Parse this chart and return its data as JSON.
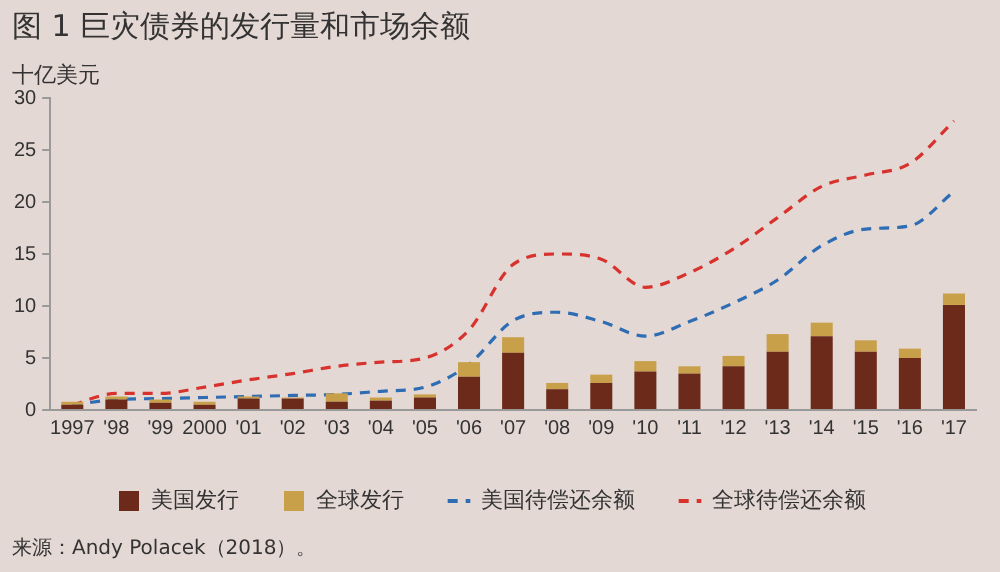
{
  "chart_data": {
    "type": "bar",
    "title": "图 1  巨灾债券的发行量和市场余额",
    "ylabel": "十亿美元",
    "categories": [
      "1997",
      "'98",
      "'99",
      "2000",
      "'01",
      "'02",
      "'03",
      "'04",
      "'05",
      "'06",
      "'07",
      "'08",
      "'09",
      "'10",
      "'11",
      "'12",
      "'13",
      "'14",
      "'15",
      "'16",
      "'17"
    ],
    "stacked": true,
    "ylim": [
      0,
      30
    ],
    "yticks": [
      0,
      5,
      10,
      15,
      20,
      25,
      30
    ],
    "grid": false,
    "legend": "bottom",
    "marker": "none",
    "series": [
      {
        "name": "美国发行",
        "color": "#6b2a1a",
        "values": [
          0.5,
          1.0,
          0.7,
          0.5,
          1.1,
          1.1,
          0.8,
          0.9,
          1.2,
          3.2,
          5.5,
          2.0,
          2.6,
          3.7,
          3.5,
          4.2,
          5.6,
          7.1,
          5.6,
          5.0,
          10.1
        ]
      },
      {
        "name": "全球发行",
        "color": "#c9a04a",
        "values": [
          0.3,
          0.3,
          0.3,
          0.3,
          0.2,
          0.1,
          0.8,
          0.3,
          0.3,
          1.4,
          1.5,
          0.6,
          0.8,
          1.0,
          0.7,
          1.0,
          1.7,
          1.3,
          1.1,
          0.9,
          1.1
        ]
      },
      {
        "name": "美国待偿还余额",
        "type": "line",
        "line_style": "dashed",
        "color": "#2e6db4",
        "values": [
          0.5,
          1.0,
          1.1,
          1.2,
          1.3,
          1.4,
          1.5,
          1.8,
          2.2,
          4.4,
          8.6,
          9.4,
          8.5,
          7.1,
          8.5,
          10.3,
          12.5,
          15.8,
          17.4,
          17.7,
          21.0
        ]
      },
      {
        "name": "全球待偿还余额",
        "type": "line",
        "line_style": "dashed",
        "color": "#d7322d",
        "values": [
          0.5,
          1.6,
          1.6,
          2.2,
          2.9,
          3.5,
          4.2,
          4.6,
          5.0,
          7.7,
          14.0,
          15.0,
          14.5,
          11.8,
          13.2,
          15.5,
          18.5,
          21.5,
          22.6,
          23.7,
          27.8
        ]
      }
    ],
    "annotations": [
      "来源：Andy Polacek（2018）。"
    ]
  }
}
